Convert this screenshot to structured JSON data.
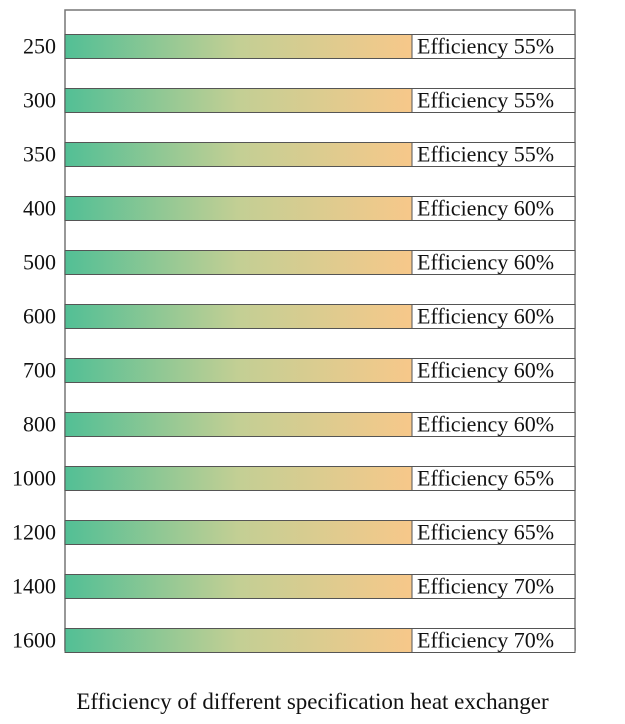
{
  "chart_data": {
    "type": "bar",
    "categories": [
      "250",
      "300",
      "350",
      "400",
      "500",
      "600",
      "700",
      "800",
      "1000",
      "1200",
      "1400",
      "1600"
    ],
    "values": [
      55,
      55,
      55,
      60,
      60,
      60,
      60,
      60,
      65,
      65,
      70,
      70
    ],
    "data_labels": [
      "Efficiency 55%",
      "Efficiency 55%",
      "Efficiency 55%",
      "Efficiency 60%",
      "Efficiency 60%",
      "Efficiency 60%",
      "Efficiency 60%",
      "Efficiency 60%",
      "Efficiency 65%",
      "Efficiency 65%",
      "Efficiency 70%",
      "Efficiency 70%"
    ],
    "title": "Efficiency of different specification heat exchanger",
    "xlabel": "",
    "ylabel": "",
    "orientation": "horizontal",
    "grid": false,
    "legend": "none",
    "colors": {
      "bar_start": "#52bf95",
      "bar_mid": "#c3cf94",
      "bar_end": "#f7c88a",
      "bar_border": "#555555",
      "frame": "#777777"
    }
  }
}
